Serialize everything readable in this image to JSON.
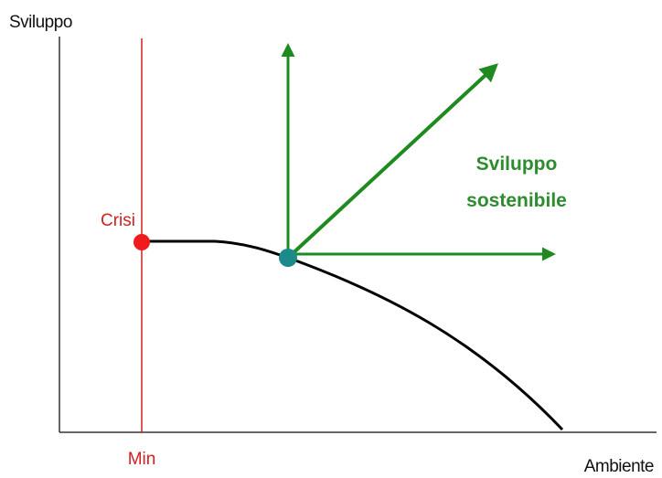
{
  "y_axis_label": "Sviluppo",
  "x_axis_label": "Ambiente",
  "crisis_label": "Crisi",
  "min_label": "Min",
  "arrows_label": {
    "lines": [
      "Sviluppo",
      "sostenibile"
    ]
  }
}
